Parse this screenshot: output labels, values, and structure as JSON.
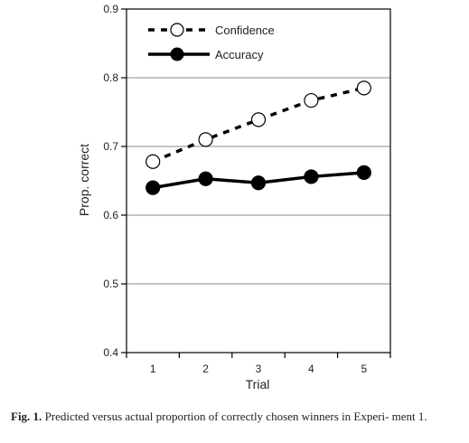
{
  "chart_data": {
    "type": "line",
    "x": [
      1,
      2,
      3,
      4,
      5
    ],
    "series": [
      {
        "name": "Confidence",
        "values": [
          0.678,
          0.71,
          0.739,
          0.767,
          0.785
        ],
        "marker": "open-circle",
        "line": "dashed",
        "color": "#000000"
      },
      {
        "name": "Accuracy",
        "values": [
          0.64,
          0.653,
          0.647,
          0.656,
          0.662
        ],
        "marker": "filled-circle",
        "line": "solid",
        "color": "#000000"
      }
    ],
    "xlabel": "Trial",
    "ylabel": "Prop. correct",
    "xlim": [
      0.5,
      5.5
    ],
    "ylim": [
      0.4,
      0.9
    ],
    "xticks": [
      "1",
      "2",
      "3",
      "4",
      "5"
    ],
    "yticks": [
      "0.4",
      "0.5",
      "0.6",
      "0.7",
      "0.8",
      "0.9"
    ],
    "yticks_values": [
      0.4,
      0.5,
      0.6,
      0.7,
      0.8,
      0.9
    ],
    "grid": "horizontal",
    "legend_position": "top-left"
  },
  "caption": {
    "label": "Fig. 1.",
    "text": " Predicted versus actual proportion of correctly chosen winners in Experi- ment 1."
  }
}
